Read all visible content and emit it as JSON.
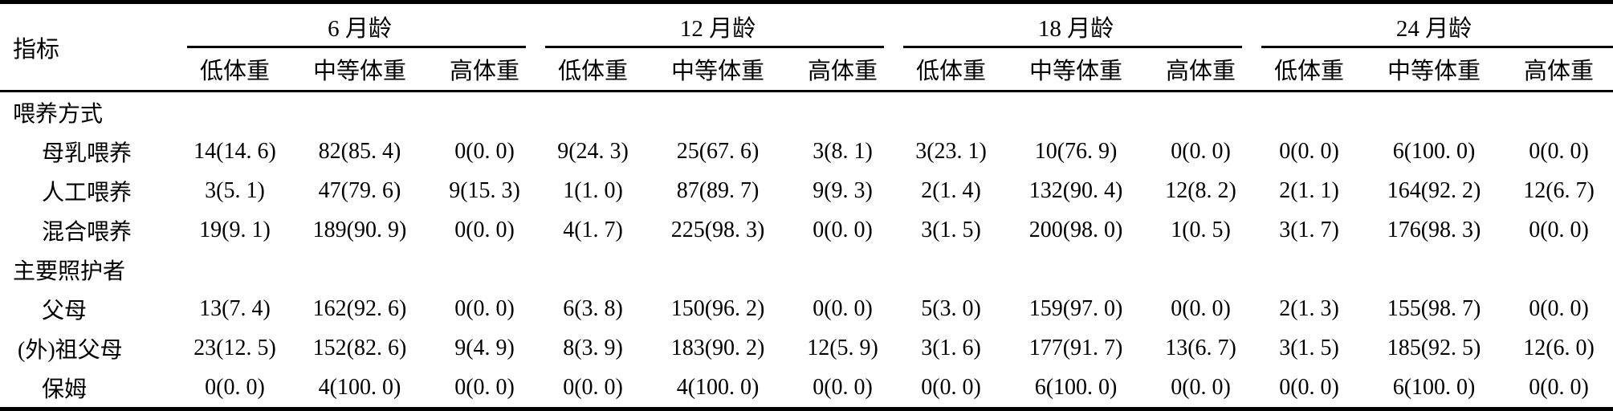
{
  "page": {
    "background_color": "#ffffff",
    "text_color": "#000000",
    "rule_color": "#000000"
  },
  "table": {
    "stub_header": "指标",
    "col_groups": [
      {
        "label": "6 月龄",
        "sub_headers": [
          "低体重",
          "中等体重",
          "高体重"
        ]
      },
      {
        "label": "12 月龄",
        "sub_headers": [
          "低体重",
          "中等体重",
          "高体重"
        ]
      },
      {
        "label": "18 月龄",
        "sub_headers": [
          "低体重",
          "中等体重",
          "高体重"
        ]
      },
      {
        "label": "24 月龄",
        "sub_headers": [
          "低体重",
          "中等体重",
          "高体重"
        ]
      }
    ],
    "rows": [
      {
        "label": "喂养方式",
        "level": 0,
        "values": []
      },
      {
        "label": "母乳喂养",
        "level": 1,
        "values": [
          "14(14. 6)",
          "82(85. 4)",
          "0(0. 0)",
          "9(24. 3)",
          "25(67. 6)",
          "3(8. 1)",
          "3(23. 1)",
          "10(76. 9)",
          "0(0. 0)",
          "0(0. 0)",
          "6(100. 0)",
          "0(0. 0)"
        ]
      },
      {
        "label": "人工喂养",
        "level": 1,
        "values": [
          "3(5. 1)",
          "47(79. 6)",
          "9(15. 3)",
          "1(1. 0)",
          "87(89. 7)",
          "9(9. 3)",
          "2(1. 4)",
          "132(90. 4)",
          "12(8. 2)",
          "2(1. 1)",
          "164(92. 2)",
          "12(6. 7)"
        ]
      },
      {
        "label": "混合喂养",
        "level": 1,
        "values": [
          "19(9. 1)",
          "189(90. 9)",
          "0(0. 0)",
          "4(1. 7)",
          "225(98. 3)",
          "0(0. 0)",
          "3(1. 5)",
          "200(98. 0)",
          "1(0. 5)",
          "3(1. 7)",
          "176(98. 3)",
          "0(0. 0)"
        ]
      },
      {
        "label": "主要照护者",
        "level": 0,
        "values": []
      },
      {
        "label": "父母",
        "level": 1,
        "values": [
          "13(7. 4)",
          "162(92. 6)",
          "0(0. 0)",
          "6(3. 8)",
          "150(96. 2)",
          "0(0. 0)",
          "5(3. 0)",
          "159(97. 0)",
          "0(0. 0)",
          "2(1. 3)",
          "155(98. 7)",
          "0(0. 0)"
        ]
      },
      {
        "label": "(外)祖父母",
        "level": 2,
        "values": [
          "23(12. 5)",
          "152(82. 6)",
          "9(4. 9)",
          "8(3. 9)",
          "183(90. 2)",
          "12(5. 9)",
          "3(1. 6)",
          "177(91. 7)",
          "13(6. 7)",
          "3(1. 5)",
          "185(92. 5)",
          "12(6. 0)"
        ]
      },
      {
        "label": "保姆",
        "level": 1,
        "values": [
          "0(0. 0)",
          "4(100. 0)",
          "0(0. 0)",
          "0(0. 0)",
          "4(100. 0)",
          "0(0. 0)",
          "0(0. 0)",
          "6(100. 0)",
          "0(0. 0)",
          "0(0. 0)",
          "6(100. 0)",
          "0(0. 0)"
        ]
      }
    ]
  }
}
